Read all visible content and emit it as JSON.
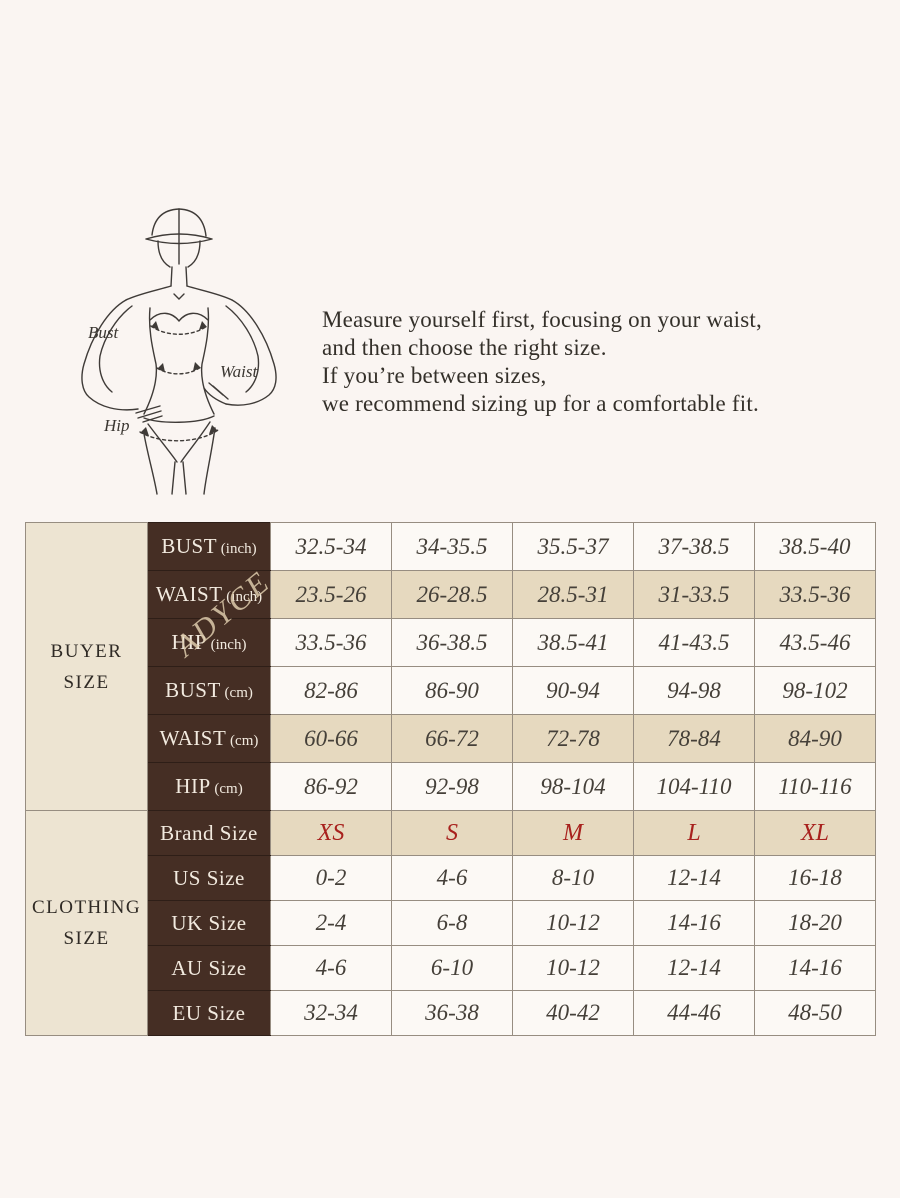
{
  "guide": {
    "figure_labels": {
      "bust": "Bust",
      "waist": "Waist",
      "hip": "Hip"
    },
    "note": {
      "lines": [
        "Measure yourself first, focusing on your waist,",
        "and then choose the right size.",
        "If you’re between sizes,",
        "we recommend sizing up for a comfortable fit."
      ]
    }
  },
  "watermark": {
    "text": "ADYCE"
  },
  "size_table": {
    "sections": [
      {
        "id": "buyer",
        "group_label_lines": [
          "BUYER",
          "SIZE"
        ],
        "rows": [
          {
            "label": "BUST",
            "unit": "(inch)",
            "shaded": false,
            "accent": false,
            "values": [
              "32.5-34",
              "34-35.5",
              "35.5-37",
              "37-38.5",
              "38.5-40"
            ]
          },
          {
            "label": "WAIST",
            "unit": "(inch)",
            "shaded": true,
            "accent": false,
            "values": [
              "23.5-26",
              "26-28.5",
              "28.5-31",
              "31-33.5",
              "33.5-36"
            ]
          },
          {
            "label": "HIP",
            "unit": "(inch)",
            "shaded": false,
            "accent": false,
            "values": [
              "33.5-36",
              "36-38.5",
              "38.5-41",
              "41-43.5",
              "43.5-46"
            ]
          },
          {
            "label": "BUST",
            "unit": "(cm)",
            "shaded": false,
            "accent": false,
            "values": [
              "82-86",
              "86-90",
              "90-94",
              "94-98",
              "98-102"
            ]
          },
          {
            "label": "WAIST",
            "unit": "(cm)",
            "shaded": true,
            "accent": false,
            "values": [
              "60-66",
              "66-72",
              "72-78",
              "78-84",
              "84-90"
            ]
          },
          {
            "label": "HIP",
            "unit": "(cm)",
            "shaded": false,
            "accent": false,
            "values": [
              "86-92",
              "92-98",
              "98-104",
              "104-110",
              "110-116"
            ]
          }
        ]
      },
      {
        "id": "clothing",
        "group_label_lines": [
          "CLOTHING",
          "SIZE"
        ],
        "rows": [
          {
            "label": "Brand Size",
            "unit": "",
            "shaded": true,
            "accent": true,
            "values": [
              "XS",
              "S",
              "M",
              "L",
              "XL"
            ]
          },
          {
            "label": "US Size",
            "unit": "",
            "shaded": false,
            "accent": false,
            "values": [
              "0-2",
              "4-6",
              "8-10",
              "12-14",
              "16-18"
            ]
          },
          {
            "label": "UK Size",
            "unit": "",
            "shaded": false,
            "accent": false,
            "values": [
              "2-4",
              "6-8",
              "10-12",
              "14-16",
              "18-20"
            ]
          },
          {
            "label": "AU Size",
            "unit": "",
            "shaded": false,
            "accent": false,
            "values": [
              "4-6",
              "6-10",
              "10-12",
              "12-14",
              "14-16"
            ]
          },
          {
            "label": "EU Size",
            "unit": "",
            "shaded": false,
            "accent": false,
            "values": [
              "32-34",
              "36-38",
              "40-42",
              "44-46",
              "48-50"
            ]
          }
        ]
      }
    ]
  },
  "colors": {
    "page_background": "#faf5f2",
    "header_brown": "#452e24",
    "shaded_beige": "#e6d9bf",
    "group_beige": "#ede4d2",
    "accent_red": "#a8211d",
    "text_dark": "#454039"
  }
}
